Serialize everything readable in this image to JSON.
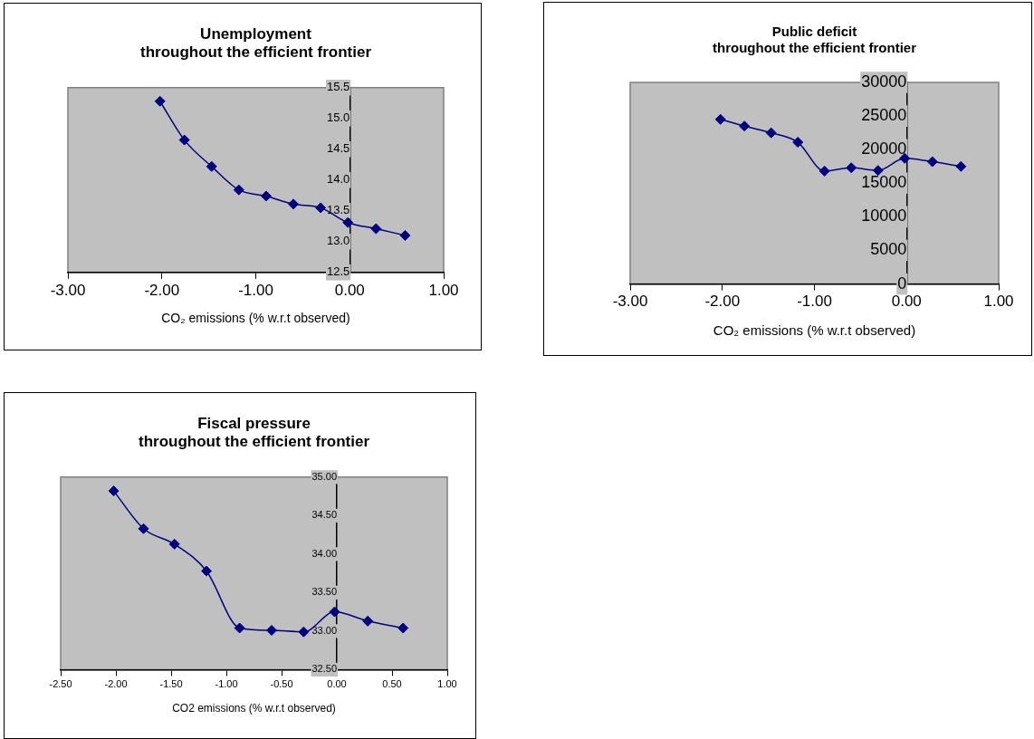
{
  "chart_data": [
    {
      "type": "line",
      "title": "Unemployment\nthroughout the efficient frontier",
      "xlabel": "CO₂ emissions (% w.r.t observed)",
      "x": [
        -2.02,
        -1.76,
        -1.47,
        -1.18,
        -0.89,
        -0.6,
        -0.31,
        -0.02,
        0.28,
        0.59
      ],
      "series": [
        {
          "color": "#000080",
          "values": [
            15.28,
            14.65,
            14.22,
            13.84,
            13.74,
            13.61,
            13.55,
            13.31,
            13.21,
            13.1
          ]
        }
      ],
      "xlim": [
        -3,
        1
      ],
      "xticks": [
        {
          "value": -3,
          "label": "-3.00"
        },
        {
          "value": -2,
          "label": "-2.00"
        },
        {
          "value": -1,
          "label": "-1.00"
        },
        {
          "value": 0,
          "label": "0.00"
        },
        {
          "value": 1,
          "label": "1.00"
        }
      ],
      "ylim": [
        12.5,
        15.5
      ],
      "yticks": [
        12.5,
        {
          "value": 13,
          "label": "13.0"
        },
        13.5,
        {
          "value": 14,
          "label": "14.0"
        },
        14.5,
        {
          "value": 15,
          "label": "15.0"
        },
        15.5
      ],
      "grid": false,
      "legend": false,
      "marker": "diamond",
      "line_style": "solid"
    },
    {
      "type": "line",
      "title": "Public deficit\nthroughout the efficient frontier",
      "xlabel": "CO₂ emissions (% w.r.t observed)",
      "x": [
        -2.02,
        -1.76,
        -1.47,
        -1.18,
        -0.89,
        -0.6,
        -0.31,
        -0.02,
        0.28,
        0.59
      ],
      "series": [
        {
          "color": "#000080",
          "values": [
            24500,
            23500,
            22500,
            21100,
            16800,
            17300,
            16900,
            18700,
            18200,
            17500
          ]
        }
      ],
      "xlim": [
        -3,
        1
      ],
      "xticks": [
        {
          "value": -3,
          "label": "-3.00"
        },
        {
          "value": -2,
          "label": "-2.00"
        },
        {
          "value": -1,
          "label": "-1.00"
        },
        {
          "value": 0,
          "label": "0.00"
        },
        {
          "value": 1,
          "label": "1.00"
        }
      ],
      "ylim": [
        0,
        30000
      ],
      "yticks": [
        0,
        5000,
        10000,
        15000,
        20000,
        25000,
        30000
      ],
      "grid": false,
      "legend": false,
      "marker": "diamond",
      "line_style": "solid"
    },
    {
      "type": "line",
      "title": "Fiscal pressure\nthroughout the efficient frontier",
      "xlabel": "CO2 emissions (% w.r.t observed)",
      "x": [
        -2.02,
        -1.75,
        -1.47,
        -1.18,
        -0.88,
        -0.59,
        -0.3,
        -0.02,
        0.28,
        0.6
      ],
      "series": [
        {
          "color": "#000080",
          "values": [
            34.82,
            34.33,
            34.13,
            33.78,
            33.04,
            33.01,
            32.99,
            33.25,
            33.13,
            33.04
          ]
        }
      ],
      "xlim": [
        -2.5,
        1
      ],
      "xticks": [
        {
          "value": -2.5,
          "label": "-2.50"
        },
        {
          "value": -2,
          "label": "-2.00"
        },
        {
          "value": -1.5,
          "label": "-1.50"
        },
        {
          "value": -1,
          "label": "-1.00"
        },
        {
          "value": -0.5,
          "label": "-0.50"
        },
        {
          "value": 0,
          "label": "0.00"
        },
        {
          "value": 0.5,
          "label": "0.50"
        },
        {
          "value": 1,
          "label": "1.00"
        }
      ],
      "ylim": [
        32.5,
        35
      ],
      "yticks": [
        {
          "value": 32.5,
          "label": "32.50"
        },
        {
          "value": 33,
          "label": "33.00"
        },
        {
          "value": 33.5,
          "label": "33.50"
        },
        {
          "value": 34,
          "label": "34.00"
        },
        {
          "value": 34.5,
          "label": "34.50"
        },
        {
          "value": 35,
          "label": "35.00"
        }
      ],
      "grid": false,
      "legend": false,
      "marker": "diamond",
      "line_style": "solid"
    }
  ]
}
